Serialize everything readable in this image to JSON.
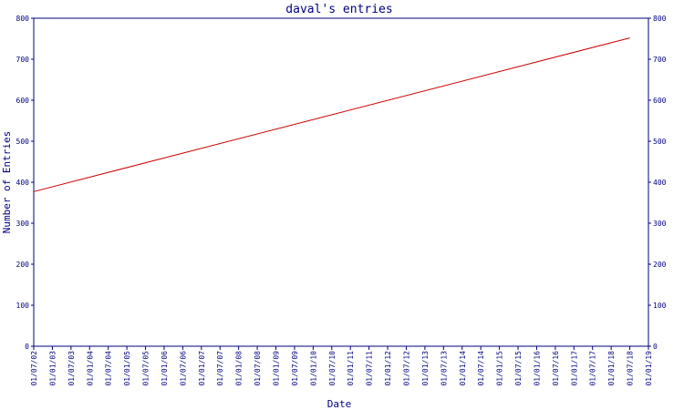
{
  "chart_data": {
    "type": "line",
    "title": "daval's entries",
    "xlabel": "Date",
    "ylabel": "Number of Entries",
    "x_ticks": [
      "01/07/02",
      "01/01/03",
      "01/07/03",
      "01/01/04",
      "01/07/04",
      "01/01/05",
      "01/07/05",
      "01/01/06",
      "01/07/06",
      "01/01/07",
      "01/07/07",
      "01/01/08",
      "01/07/08",
      "01/01/09",
      "01/07/09",
      "01/01/10",
      "01/07/10",
      "01/01/11",
      "01/07/11",
      "01/01/12",
      "01/07/12",
      "01/01/13",
      "01/07/13",
      "01/01/14",
      "01/07/14",
      "01/01/15",
      "01/07/15",
      "01/01/16",
      "01/07/16",
      "01/01/17",
      "01/07/17",
      "01/01/18",
      "01/07/18",
      "01/01/19"
    ],
    "y_ticks": [
      0,
      100,
      200,
      300,
      400,
      500,
      600,
      700,
      800
    ],
    "ylim": [
      0,
      800
    ],
    "xlim": [
      "01/07/02",
      "01/01/19"
    ],
    "grid": false,
    "colors": {
      "axis": "#000080",
      "line": "#cc0000",
      "text": "#000080"
    },
    "series": [
      {
        "x": [
          "01/07/02",
          "01/07/18"
        ],
        "y": [
          377,
          752
        ]
      }
    ]
  }
}
